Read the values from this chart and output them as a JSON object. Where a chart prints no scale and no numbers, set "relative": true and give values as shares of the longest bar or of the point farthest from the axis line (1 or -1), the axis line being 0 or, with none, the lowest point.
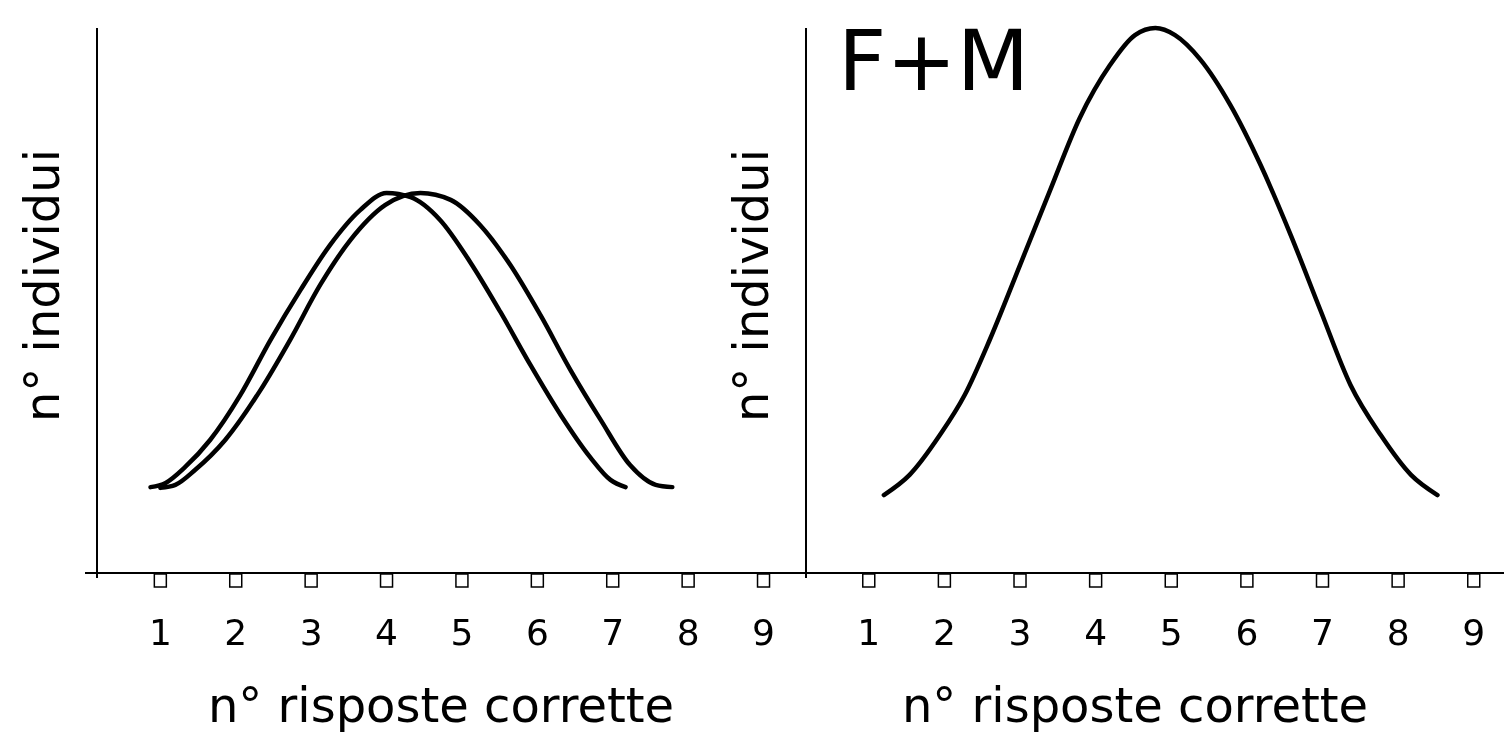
{
  "chart_data": [
    {
      "type": "line",
      "relative": true,
      "xlabel": "n° risposte corrette",
      "ylabel": "n° individui",
      "xlim": [
        0.16,
        9.55
      ],
      "xticks": [
        1,
        2,
        3,
        4,
        5,
        6,
        7,
        8,
        9
      ],
      "tick_labels": "x",
      "marker": "none",
      "line_style": "solid",
      "series": [
        {
          "color": "#000000",
          "x": [
            0.87,
            1.07,
            1.33,
            1.66,
            2.06,
            2.46,
            2.86,
            3.25,
            3.65,
            4.0,
            4.32,
            4.71,
            5.11,
            5.51,
            5.91,
            6.31,
            6.7,
            6.97,
            7.17
          ],
          "values": [
            0.226,
            0.237,
            0.279,
            0.35,
            0.468,
            0.613,
            0.745,
            0.863,
            0.955,
            1,
            0.989,
            0.929,
            0.818,
            0.687,
            0.547,
            0.416,
            0.305,
            0.245,
            0.226
          ]
        },
        {
          "color": "#000000",
          "x": [
            1.0,
            1.2,
            1.46,
            1.86,
            2.33,
            2.72,
            3.12,
            3.52,
            3.98,
            4.45,
            4.85,
            5.24,
            5.64,
            6.04,
            6.44,
            6.84,
            7.23,
            7.57,
            7.79
          ],
          "values": [
            0.224,
            0.232,
            0.271,
            0.35,
            0.482,
            0.613,
            0.758,
            0.876,
            0.968,
            1,
            0.982,
            0.916,
            0.811,
            0.679,
            0.534,
            0.403,
            0.284,
            0.232,
            0.226
          ]
        }
      ]
    },
    {
      "type": "line",
      "relative": true,
      "title": "F+M",
      "xlabel": "n° risposte corrette",
      "ylabel": "n° individui",
      "xlim": [
        0.17,
        9.4
      ],
      "xticks": [
        1,
        2,
        3,
        4,
        5,
        6,
        7,
        8,
        9
      ],
      "tick_labels": "x",
      "marker": "none",
      "line_style": "solid",
      "series": [
        {
          "color": "#000000",
          "x": [
            1.2,
            1.54,
            1.94,
            2.27,
            2.6,
            3.0,
            3.4,
            3.79,
            4.19,
            4.52,
            4.79,
            5.05,
            5.38,
            5.78,
            6.18,
            6.58,
            6.97,
            7.37,
            7.77,
            8.17,
            8.52
          ],
          "values": [
            0.143,
            0.18,
            0.253,
            0.327,
            0.428,
            0.565,
            0.703,
            0.835,
            0.932,
            0.987,
            1,
            0.987,
            0.943,
            0.859,
            0.749,
            0.62,
            0.483,
            0.345,
            0.253,
            0.18,
            0.143
          ]
        }
      ]
    }
  ]
}
